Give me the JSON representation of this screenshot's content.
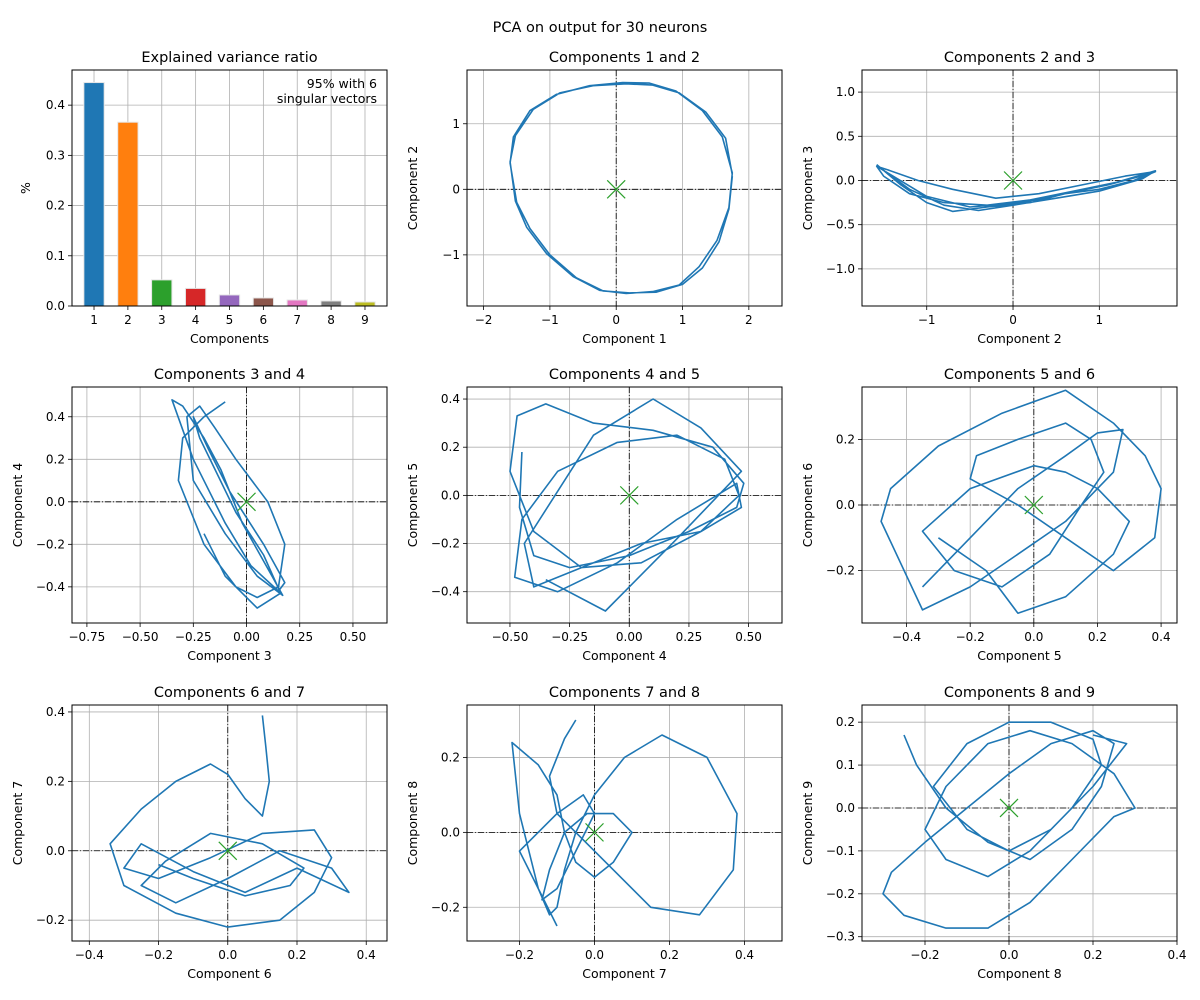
{
  "figure_title": "PCA on output for 30 neurons",
  "colors": {
    "trajectory": "#1f77b4",
    "marker": "#2ca02c",
    "grid": "#b0b0b0",
    "axis": "#000000",
    "bars": [
      "#1f77b4",
      "#ff7f0e",
      "#2ca02c",
      "#d62728",
      "#9467bd",
      "#8c564b",
      "#e377c2",
      "#7f7f7f",
      "#bcbd22"
    ]
  },
  "chart_data": [
    {
      "type": "bar",
      "title": "Explained variance ratio",
      "xlabel": "Components",
      "ylabel": "%",
      "categories": [
        "1",
        "2",
        "3",
        "4",
        "5",
        "6",
        "7",
        "8",
        "9"
      ],
      "values": [
        0.445,
        0.366,
        0.052,
        0.035,
        0.022,
        0.016,
        0.012,
        0.01,
        0.008
      ],
      "ylim": [
        0,
        0.47
      ],
      "yticks": [
        0.0,
        0.1,
        0.2,
        0.3,
        0.4
      ],
      "grid": true,
      "annotation": [
        "95% with 6",
        "singular vectors"
      ]
    },
    {
      "type": "line",
      "title": "Components 1 and 2",
      "xlabel": "Component 1",
      "ylabel": "Component 2",
      "xlim": [
        -2.25,
        2.5
      ],
      "ylim": [
        -1.78,
        1.82
      ],
      "xticks": [
        -2,
        -1,
        0,
        1,
        2
      ],
      "yticks": [
        -1,
        0,
        1
      ],
      "grid": true,
      "origin_marker": [
        0,
        0
      ],
      "series": [
        {
          "x": [
            1.75,
            1.7,
            1.55,
            1.3,
            1.0,
            0.6,
            0.2,
            -0.2,
            -0.6,
            -1.0,
            -1.3,
            -1.5,
            -1.6,
            -1.55,
            -1.3,
            -0.9,
            -0.4,
            0.1,
            0.5,
            0.9,
            1.3,
            1.6,
            1.75,
            1.7,
            1.52,
            1.25,
            0.95,
            0.55,
            0.15,
            -0.25,
            -0.65,
            -1.05,
            -1.35,
            -1.52,
            -1.6,
            -1.52,
            -1.25,
            -0.85,
            -0.35,
            0.15,
            0.55,
            0.95,
            1.35,
            1.65,
            1.75
          ],
          "y": [
            0.2,
            -0.3,
            -0.8,
            -1.2,
            -1.45,
            -1.57,
            -1.58,
            -1.55,
            -1.35,
            -1.0,
            -0.6,
            -0.2,
            0.4,
            0.8,
            1.2,
            1.45,
            1.58,
            1.63,
            1.62,
            1.5,
            1.2,
            0.8,
            0.25,
            -0.28,
            -0.78,
            -1.18,
            -1.46,
            -1.56,
            -1.59,
            -1.54,
            -1.33,
            -0.98,
            -0.58,
            -0.18,
            0.42,
            0.82,
            1.22,
            1.47,
            1.58,
            1.61,
            1.59,
            1.47,
            1.18,
            0.78,
            0.22
          ]
        }
      ]
    },
    {
      "type": "line",
      "title": "Components 2 and 3",
      "xlabel": "Component 2",
      "ylabel": "Component 3",
      "xlim": [
        -1.75,
        1.9
      ],
      "ylim": [
        -1.42,
        1.25
      ],
      "xticks": [
        -1,
        0,
        1
      ],
      "yticks": [
        -1.0,
        -0.5,
        0.0,
        0.5,
        1.0
      ],
      "grid": true,
      "origin_marker": [
        0,
        0
      ],
      "series": [
        {
          "x": [
            -1.58,
            -1.3,
            -1.0,
            -0.7,
            -0.3,
            0.2,
            0.6,
            1.0,
            1.4,
            1.65,
            1.3,
            0.8,
            0.3,
            -0.2,
            -0.7,
            -1.1,
            -1.45,
            -1.55,
            -1.2,
            -0.8,
            -0.4,
            0.0,
            0.5,
            1.0,
            1.5,
            1.65,
            1.2,
            0.7,
            0.2,
            -0.3,
            -0.8,
            -1.2,
            -1.5,
            -1.58,
            -1.0,
            -0.5,
            0.1,
            0.6,
            1.1,
            1.6
          ],
          "y": [
            0.18,
            -0.05,
            -0.25,
            -0.35,
            -0.3,
            -0.25,
            -0.15,
            -0.1,
            0.0,
            0.1,
            0.05,
            -0.05,
            -0.15,
            -0.2,
            -0.1,
            0.0,
            0.12,
            0.15,
            -0.1,
            -0.28,
            -0.34,
            -0.28,
            -0.2,
            -0.12,
            0.02,
            0.11,
            -0.02,
            -0.12,
            -0.22,
            -0.28,
            -0.25,
            -0.15,
            0.05,
            0.16,
            -0.18,
            -0.3,
            -0.25,
            -0.15,
            -0.05,
            0.08
          ]
        }
      ]
    },
    {
      "type": "line",
      "title": "Components 3 and 4",
      "xlabel": "Component 3",
      "ylabel": "Component 4",
      "xlim": [
        -0.82,
        0.66
      ],
      "ylim": [
        -0.57,
        0.54
      ],
      "xticks": [
        -0.75,
        -0.5,
        -0.25,
        0.0,
        0.25,
        0.5
      ],
      "yticks": [
        -0.4,
        -0.2,
        0.0,
        0.2,
        0.4
      ],
      "grid": true,
      "origin_marker": [
        0,
        0
      ],
      "series": [
        {
          "x": [
            -0.1,
            -0.2,
            -0.3,
            -0.32,
            -0.2,
            -0.05,
            0.05,
            0.15,
            0.18,
            0.1,
            -0.05,
            -0.15,
            -0.22,
            -0.28,
            -0.25,
            -0.1,
            0.05,
            0.17,
            0.12,
            -0.02,
            -0.12,
            -0.2,
            -0.3,
            -0.35,
            -0.25,
            -0.1,
            0.02,
            0.15,
            0.18,
            0.08,
            -0.08,
            -0.18,
            -0.25,
            -0.22,
            -0.05,
            0.08,
            0.16,
            0.05,
            -0.1,
            -0.2
          ],
          "y": [
            0.47,
            0.4,
            0.3,
            0.1,
            -0.2,
            -0.4,
            -0.45,
            -0.4,
            -0.2,
            0.0,
            0.2,
            0.35,
            0.45,
            0.4,
            0.1,
            -0.15,
            -0.35,
            -0.44,
            -0.35,
            -0.1,
            0.15,
            0.3,
            0.45,
            0.48,
            0.2,
            -0.1,
            -0.3,
            -0.42,
            -0.38,
            -0.2,
            0.05,
            0.25,
            0.4,
            0.3,
            -0.05,
            -0.25,
            -0.43,
            -0.5,
            -0.35,
            -0.15
          ]
        }
      ]
    },
    {
      "type": "line",
      "title": "Components 4 and 5",
      "xlabel": "Component 4",
      "ylabel": "Component 5",
      "xlim": [
        -0.68,
        0.64
      ],
      "ylim": [
        -0.53,
        0.45
      ],
      "xticks": [
        -0.5,
        -0.25,
        0.0,
        0.25,
        0.5
      ],
      "yticks": [
        -0.4,
        -0.2,
        0.0,
        0.2,
        0.4
      ],
      "grid": true,
      "origin_marker": [
        0,
        0
      ],
      "series": [
        {
          "x": [
            -0.45,
            -0.46,
            -0.4,
            -0.25,
            0.0,
            0.25,
            0.45,
            0.48,
            0.35,
            0.1,
            -0.15,
            -0.35,
            -0.47,
            -0.5,
            -0.4,
            -0.2,
            0.05,
            0.3,
            0.46,
            0.4,
            0.2,
            -0.05,
            -0.3,
            -0.45,
            -0.48,
            -0.3,
            -0.05,
            0.2,
            0.45,
            0.47,
            0.3,
            0.05,
            -0.2,
            -0.4,
            -0.44,
            -0.15,
            0.1,
            0.3,
            0.47,
            0.2,
            -0.1,
            -0.35
          ],
          "y": [
            0.18,
            -0.05,
            -0.25,
            -0.3,
            -0.25,
            -0.15,
            -0.05,
            0.05,
            0.2,
            0.27,
            0.3,
            0.38,
            0.33,
            0.1,
            -0.15,
            -0.3,
            -0.28,
            -0.15,
            0.0,
            0.15,
            0.25,
            0.22,
            0.1,
            -0.1,
            -0.34,
            -0.4,
            -0.28,
            -0.1,
            0.05,
            -0.05,
            -0.15,
            -0.2,
            -0.3,
            -0.38,
            -0.2,
            0.25,
            0.4,
            0.28,
            0.1,
            -0.18,
            -0.48,
            -0.35
          ]
        }
      ]
    },
    {
      "type": "line",
      "title": "Components 5 and 6",
      "xlabel": "Component 5",
      "ylabel": "Component 6",
      "xlim": [
        -0.54,
        0.45
      ],
      "ylim": [
        -0.36,
        0.36
      ],
      "xticks": [
        -0.4,
        -0.2,
        0.0,
        0.2,
        0.4
      ],
      "yticks": [
        -0.2,
        0.0,
        0.2
      ],
      "grid": true,
      "origin_marker": [
        0,
        0
      ],
      "series": [
        {
          "x": [
            -0.35,
            -0.2,
            -0.05,
            0.1,
            0.2,
            0.28,
            0.25,
            0.1,
            -0.05,
            -0.2,
            -0.35,
            -0.48,
            -0.45,
            -0.3,
            -0.1,
            0.1,
            0.25,
            0.35,
            0.4,
            0.38,
            0.25,
            0.1,
            -0.05,
            -0.2,
            -0.18,
            -0.05,
            0.1,
            0.18,
            0.22,
            0.15,
            0.05,
            -0.1,
            -0.25,
            -0.35,
            -0.2,
            0.0,
            0.1,
            0.2,
            0.3,
            0.25,
            0.1,
            -0.05,
            -0.15,
            -0.3
          ],
          "y": [
            -0.25,
            -0.1,
            0.05,
            0.15,
            0.22,
            0.23,
            0.1,
            -0.05,
            -0.15,
            -0.25,
            -0.32,
            -0.05,
            0.05,
            0.18,
            0.28,
            0.35,
            0.25,
            0.15,
            0.05,
            -0.1,
            -0.2,
            -0.1,
            0.0,
            0.08,
            0.15,
            0.2,
            0.25,
            0.2,
            0.1,
            0.0,
            -0.15,
            -0.25,
            -0.2,
            -0.08,
            0.05,
            0.12,
            0.1,
            0.05,
            -0.05,
            -0.15,
            -0.28,
            -0.33,
            -0.2,
            -0.1
          ]
        }
      ]
    },
    {
      "type": "line",
      "title": "Components 6 and 7",
      "xlabel": "Component 6",
      "ylabel": "Component 7",
      "xlim": [
        -0.45,
        0.46
      ],
      "ylim": [
        -0.26,
        0.42
      ],
      "xticks": [
        -0.4,
        -0.2,
        0.0,
        0.2,
        0.4
      ],
      "yticks": [
        -0.2,
        0.0,
        0.2,
        0.4
      ],
      "grid": true,
      "origin_marker": [
        0,
        0
      ],
      "series": [
        {
          "x": [
            0.1,
            0.11,
            0.12,
            0.1,
            0.05,
            0.0,
            -0.05,
            -0.15,
            -0.25,
            -0.34,
            -0.3,
            -0.15,
            0.0,
            0.15,
            0.25,
            0.3,
            0.25,
            0.1,
            -0.05,
            -0.2,
            -0.3,
            -0.25,
            -0.1,
            0.05,
            0.2,
            0.35,
            0.3,
            0.15,
            0.0,
            -0.15,
            -0.25,
            -0.18,
            -0.05,
            0.1,
            0.22,
            0.18,
            0.05,
            -0.1,
            -0.2
          ],
          "y": [
            0.39,
            0.3,
            0.2,
            0.1,
            0.15,
            0.22,
            0.25,
            0.2,
            0.12,
            0.02,
            -0.1,
            -0.18,
            -0.22,
            -0.2,
            -0.12,
            -0.02,
            0.06,
            0.05,
            -0.02,
            -0.08,
            -0.05,
            0.02,
            -0.06,
            -0.12,
            -0.05,
            -0.12,
            -0.05,
            0.0,
            -0.08,
            -0.15,
            -0.1,
            -0.03,
            0.05,
            0.02,
            -0.05,
            -0.1,
            -0.13,
            -0.08,
            -0.04
          ]
        }
      ]
    },
    {
      "type": "line",
      "title": "Components 7 and 8",
      "xlabel": "Component 7",
      "ylabel": "Component 8",
      "xlim": [
        -0.34,
        0.5
      ],
      "ylim": [
        -0.29,
        0.34
      ],
      "xticks": [
        -0.2,
        0.0,
        0.2,
        0.4
      ],
      "yticks": [
        -0.2,
        0.0,
        0.2
      ],
      "grid": true,
      "origin_marker": [
        0,
        0
      ],
      "series": [
        {
          "x": [
            -0.05,
            -0.08,
            -0.12,
            -0.1,
            -0.05,
            0.0,
            0.05,
            0.15,
            0.28,
            0.37,
            0.38,
            0.3,
            0.18,
            0.08,
            0.0,
            -0.05,
            -0.08,
            -0.1,
            -0.12,
            -0.15,
            -0.2,
            -0.22,
            -0.15,
            -0.1,
            -0.08,
            -0.05,
            0.0,
            0.05,
            0.1,
            0.05,
            -0.02,
            -0.08,
            -0.12,
            -0.14,
            -0.1,
            -0.05,
            0.0,
            -0.03,
            -0.1,
            -0.2,
            -0.15,
            -0.1
          ],
          "y": [
            0.3,
            0.25,
            0.15,
            0.05,
            0.0,
            -0.05,
            -0.1,
            -0.2,
            -0.22,
            -0.1,
            0.05,
            0.2,
            0.26,
            0.2,
            0.1,
            0.0,
            -0.1,
            -0.2,
            -0.22,
            -0.15,
            0.05,
            0.24,
            0.18,
            0.1,
            0.0,
            -0.08,
            -0.12,
            -0.08,
            0.0,
            0.05,
            0.05,
            0.0,
            -0.1,
            -0.18,
            -0.15,
            -0.05,
            0.05,
            0.1,
            0.05,
            -0.05,
            -0.15,
            -0.25
          ]
        }
      ]
    },
    {
      "type": "line",
      "title": "Components 8 and 9",
      "xlabel": "Component 8",
      "ylabel": "Component 9",
      "xlim": [
        -0.35,
        0.4
      ],
      "ylim": [
        -0.31,
        0.24
      ],
      "xticks": [
        -0.2,
        0.0,
        0.2,
        0.4
      ],
      "yticks": [
        -0.3,
        -0.2,
        -0.1,
        0.0,
        0.1,
        0.2
      ],
      "grid": true,
      "origin_marker": [
        0,
        0
      ],
      "series": [
        {
          "x": [
            -0.25,
            -0.22,
            -0.15,
            -0.05,
            0.05,
            0.15,
            0.22,
            0.25,
            0.2,
            0.1,
            0.0,
            -0.1,
            -0.2,
            -0.28,
            -0.3,
            -0.25,
            -0.15,
            -0.05,
            0.05,
            0.15,
            0.25,
            0.3,
            0.25,
            0.15,
            0.05,
            -0.05,
            -0.15,
            -0.2,
            -0.15,
            -0.05,
            0.05,
            0.15,
            0.22,
            0.2,
            0.1,
            0.0,
            -0.1,
            -0.18,
            -0.1,
            0.0,
            0.1,
            0.2,
            0.28,
            0.2
          ],
          "y": [
            0.17,
            0.1,
            0.0,
            -0.08,
            -0.12,
            -0.05,
            0.05,
            0.15,
            0.18,
            0.15,
            0.08,
            0.0,
            -0.08,
            -0.15,
            -0.2,
            -0.25,
            -0.28,
            -0.28,
            -0.22,
            -0.12,
            -0.02,
            0.0,
            0.08,
            0.15,
            0.18,
            0.15,
            0.05,
            -0.05,
            -0.12,
            -0.16,
            -0.1,
            0.0,
            0.1,
            0.16,
            0.2,
            0.2,
            0.15,
            0.05,
            -0.05,
            -0.1,
            -0.05,
            0.05,
            0.15,
            0.17
          ]
        }
      ]
    }
  ]
}
